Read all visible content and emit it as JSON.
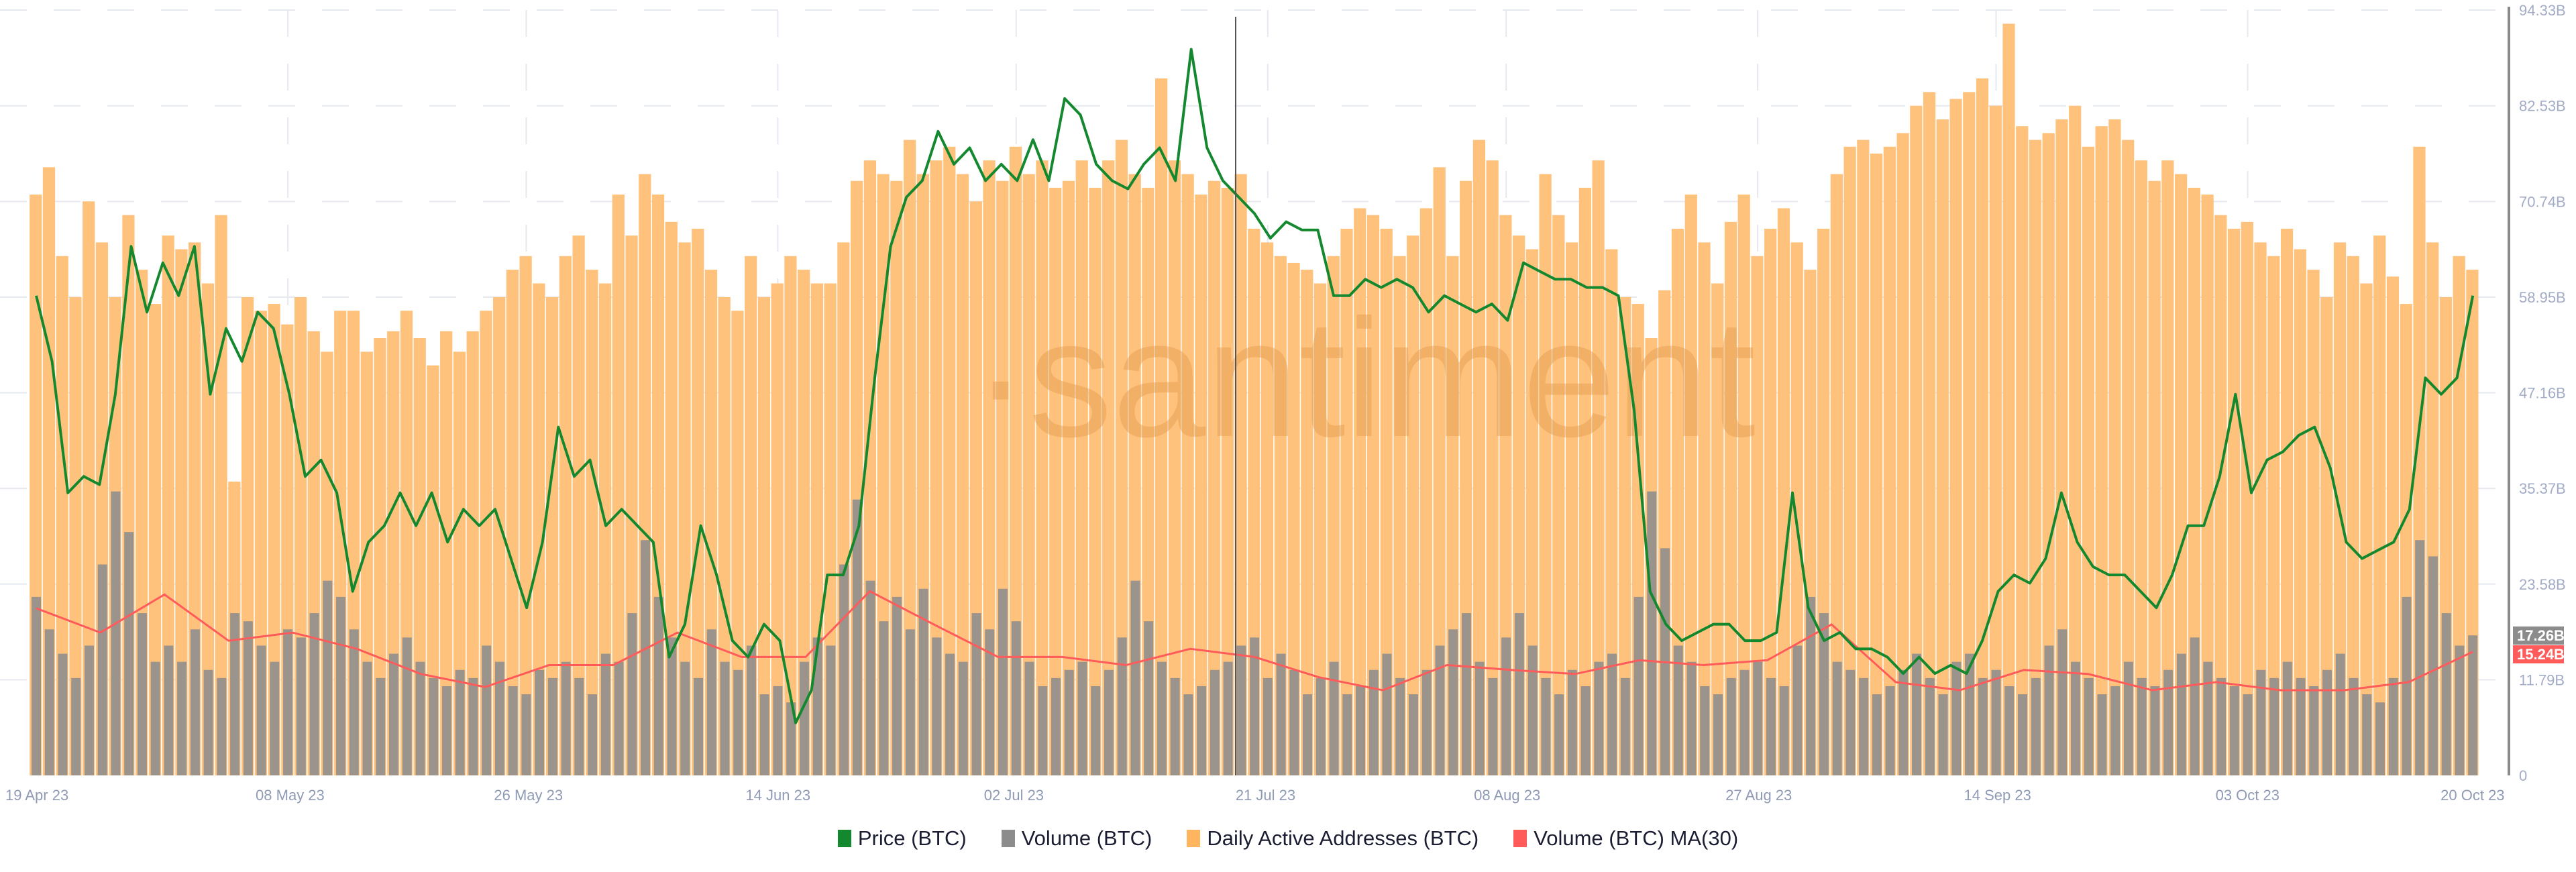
{
  "chart_data": {
    "type": "bar+line",
    "x_start": "2023-04-19",
    "x_end": "2023-10-20",
    "x_tick_labels": [
      "19 Apr 23",
      "08 May 23",
      "26 May 23",
      "14 Jun 23",
      "02 Jul 23",
      "21 Jul 23",
      "08 Aug 23",
      "27 Aug 23",
      "14 Sep 23",
      "03 Oct 23",
      "20 Oct 23"
    ],
    "x_tick_dates": [
      "2023-04-19",
      "2023-05-08",
      "2023-05-26",
      "2023-06-14",
      "2023-07-02",
      "2023-07-21",
      "2023-08-08",
      "2023-08-27",
      "2023-09-14",
      "2023-10-03",
      "2023-10-20"
    ],
    "y_right_tick_labels": [
      "0",
      "11.79B",
      "23.58B",
      "35.37B",
      "47.16B",
      "58.95B",
      "70.74B",
      "82.53B",
      "94.33B"
    ],
    "y_right_ticks": [
      0,
      11.79,
      23.58,
      35.37,
      47.16,
      58.95,
      70.74,
      82.53,
      94.33
    ],
    "y_right_range": [
      0,
      94.33
    ],
    "grid": true,
    "legend_placement": "bottom",
    "watermark": "·santiment",
    "current_value_badges": [
      {
        "label": "17.26B",
        "color": "#8c8c8c"
      },
      {
        "label": "15.24B",
        "color": "#ff5b5b"
      }
    ],
    "series": [
      {
        "name": "Price (BTC)",
        "type": "line",
        "color": "#13882e",
        "unit": "USD",
        "sampling": "evenly spaced over range",
        "values": [
          29121,
          28497,
          27249,
          27405,
          27327,
          28185,
          29589,
          28965,
          29433,
          29121,
          29589,
          28185,
          28809,
          28497,
          28965,
          28809,
          28185,
          27405,
          27561,
          27249,
          26313,
          26781,
          26937,
          27249,
          26937,
          27249,
          26781,
          27093,
          26937,
          27093,
          26625,
          26157,
          26781,
          27873,
          27405,
          27561,
          26937,
          27093,
          26937,
          26781,
          25689,
          26001,
          26937,
          26469,
          25845,
          25689,
          26001,
          25845,
          25065,
          25377,
          26469,
          26469,
          26937,
          28341,
          29589,
          30057,
          30213,
          30681,
          30369,
          30525,
          30213,
          30369,
          30213,
          30603,
          30213,
          30993,
          30837,
          30369,
          30213,
          30135,
          30369,
          30525,
          30213,
          31461,
          30525,
          30213,
          30057,
          29901,
          29667,
          29823,
          29745,
          29745,
          29121,
          29121,
          29277,
          29199,
          29277,
          29199,
          28965,
          29121,
          29043,
          28965,
          29043,
          28887,
          29433,
          29355,
          29277,
          29277,
          29199,
          29199,
          29121,
          28029,
          26313,
          26001,
          25845,
          25923,
          26001,
          26001,
          25845,
          25845,
          25923,
          27249,
          26157,
          25845,
          25923,
          25767,
          25767,
          25689,
          25533,
          25689,
          25533,
          25611,
          25533,
          25845,
          26313,
          26469,
          26391,
          26625,
          27249,
          26781,
          26547,
          26469,
          26469,
          26313,
          26157,
          26469,
          26937,
          26937,
          27405,
          28185,
          27249,
          27561,
          27639,
          27795,
          27873,
          27483,
          26781,
          26625,
          26703,
          26781,
          27093,
          28341,
          28185,
          28341,
          29121
        ]
      },
      {
        "name": "Volume (BTC)",
        "type": "bar",
        "color": "#8c8c8c",
        "unit": "B",
        "sampling": "daily",
        "values": [
          22,
          18,
          15,
          12,
          16,
          26,
          35,
          30,
          20,
          14,
          16,
          14,
          18,
          13,
          12,
          20,
          19,
          16,
          14,
          18,
          17,
          20,
          24,
          22,
          18,
          14,
          12,
          15,
          17,
          14,
          12,
          11,
          13,
          12,
          16,
          14,
          11,
          10,
          13,
          12,
          14,
          12,
          10,
          15,
          14,
          20,
          29,
          22,
          17,
          14,
          12,
          18,
          14,
          13,
          16,
          10,
          11,
          9,
          14,
          17,
          16,
          26,
          34,
          24,
          19,
          22,
          18,
          23,
          17,
          15,
          14,
          20,
          18,
          23,
          19,
          14,
          11,
          12,
          13,
          14,
          11,
          13,
          17,
          24,
          19,
          14,
          12,
          10,
          11,
          13,
          14,
          16,
          17,
          12,
          15,
          13,
          10,
          12,
          14,
          10,
          11,
          13,
          15,
          12,
          10,
          13,
          16,
          18,
          20,
          14,
          12,
          17,
          20,
          16,
          12,
          10,
          13,
          11,
          14,
          15,
          12,
          22,
          35,
          28,
          16,
          14,
          11,
          10,
          12,
          13,
          14,
          12,
          11,
          16,
          22,
          20,
          14,
          13,
          12,
          10,
          11,
          13,
          15,
          12,
          10,
          14,
          15,
          12,
          13,
          11,
          10,
          12,
          16,
          18,
          14,
          12,
          10,
          11,
          14,
          12,
          11,
          13,
          15,
          17,
          14,
          12,
          11,
          10,
          13,
          12,
          14,
          12,
          11,
          13,
          15,
          12,
          10,
          9,
          12,
          22,
          29,
          27,
          20,
          16,
          17.26
        ]
      },
      {
        "name": "Daily Active Addresses (BTC)",
        "type": "bar",
        "color": "#ffb55f",
        "unit": "thousand addresses",
        "sampling": "daily",
        "values": [
          850,
          890,
          760,
          700,
          840,
          780,
          700,
          820,
          740,
          690,
          790,
          770,
          780,
          720,
          820,
          430,
          700,
          680,
          690,
          660,
          700,
          650,
          620,
          680,
          680,
          620,
          640,
          650,
          680,
          640,
          600,
          650,
          620,
          650,
          680,
          700,
          740,
          760,
          720,
          700,
          760,
          790,
          740,
          720,
          850,
          790,
          880,
          850,
          810,
          780,
          800,
          740,
          700,
          680,
          760,
          700,
          720,
          760,
          740,
          720,
          720,
          780,
          870,
          900,
          880,
          870,
          930,
          880,
          900,
          920,
          880,
          840,
          900,
          870,
          920,
          880,
          900,
          860,
          870,
          900,
          860,
          900,
          930,
          880,
          860,
          1020,
          900,
          880,
          850,
          870,
          860,
          880,
          800,
          780,
          760,
          750,
          740,
          720,
          760,
          800,
          830,
          820,
          800,
          760,
          790,
          830,
          890,
          760,
          870,
          930,
          900,
          820,
          790,
          770,
          880,
          820,
          780,
          860,
          900,
          770,
          700,
          690,
          640,
          710,
          800,
          850,
          780,
          720,
          810,
          850,
          760,
          800,
          830,
          780,
          740,
          800,
          880,
          920,
          930,
          910,
          920,
          940,
          980,
          1000,
          960,
          990,
          1000,
          1020,
          980,
          1100,
          950,
          930,
          940,
          960,
          980,
          920,
          950,
          960,
          930,
          900,
          870,
          900,
          880,
          860,
          850,
          820,
          800,
          810,
          780,
          760,
          800,
          770,
          740,
          700,
          780,
          760,
          720,
          790,
          730,
          690,
          920,
          780,
          700,
          760,
          740
        ]
      },
      {
        "name": "Volume (BTC) MA(30)",
        "type": "line",
        "color": "#ff5b5b",
        "unit": "B",
        "sampling": "evenly spaced over range",
        "values": [
          20.6,
          17.6,
          22.3,
          16.6,
          17.6,
          15.6,
          12.5,
          10.9,
          13.6,
          13.6,
          17.6,
          14.6,
          14.6,
          22.7,
          18.6,
          14.6,
          14.6,
          13.6,
          15.6,
          14.6,
          12.1,
          10.5,
          13.6,
          13.0,
          12.5,
          14.2,
          13.6,
          14.2,
          18.6,
          11.5,
          10.5,
          13.0,
          12.5,
          10.5,
          11.5,
          10.5,
          10.5,
          11.5,
          15.24
        ]
      }
    ]
  },
  "legend": [
    {
      "label": "Price (BTC)",
      "color": "#13882e"
    },
    {
      "label": "Volume (BTC)",
      "color": "#8c8c8c"
    },
    {
      "label": "Daily Active Addresses (BTC)",
      "color": "#ffb55f"
    },
    {
      "label": "Volume (BTC) MA(30)",
      "color": "#ff5b5b"
    }
  ]
}
